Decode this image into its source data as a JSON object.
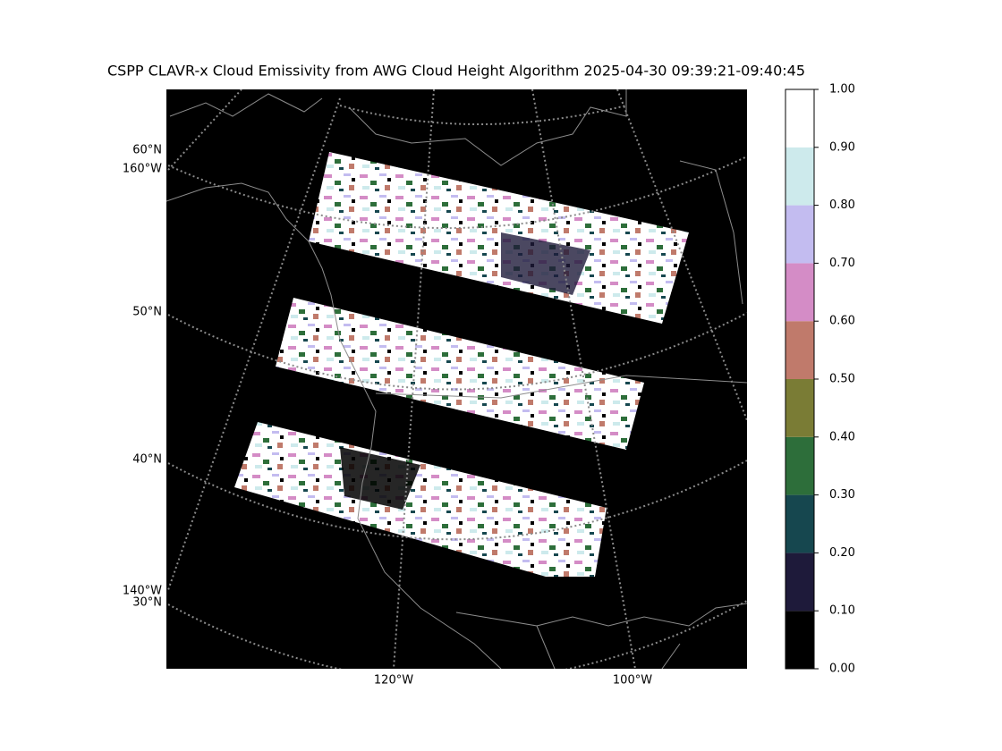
{
  "title": "CSPP CLAVR-x Cloud Emissivity from AWG Cloud Height Algorithm 2025-04-30 09:39:21-09:40:45",
  "map": {
    "lat_labels": [
      "60°N",
      "50°N",
      "40°N",
      "30°N"
    ],
    "lon_labels": [
      "160°W",
      "140°W",
      "120°W",
      "100°W"
    ]
  },
  "colorbar": {
    "ticks": [
      {
        "value": 0,
        "label": "0.00"
      },
      {
        "value": 0.1,
        "label": "0.10"
      },
      {
        "value": 0.2,
        "label": "0.20"
      },
      {
        "value": 0.3,
        "label": "0.30"
      },
      {
        "value": 0.4,
        "label": "0.40"
      },
      {
        "value": 0.5,
        "label": "0.50"
      },
      {
        "value": 0.6,
        "label": "0.60"
      },
      {
        "value": 0.7,
        "label": "0.70"
      },
      {
        "value": 0.8,
        "label": "0.80"
      },
      {
        "value": 0.9,
        "label": "0.90"
      },
      {
        "value": 1,
        "label": "1.00"
      }
    ],
    "colors": [
      "#000000",
      "#1e1a3a",
      "#16474f",
      "#2d6e3a",
      "#7a7c35",
      "#c07a6b",
      "#d48cc6",
      "#c3bcf0",
      "#cdeaec",
      "#ffffff"
    ]
  }
}
